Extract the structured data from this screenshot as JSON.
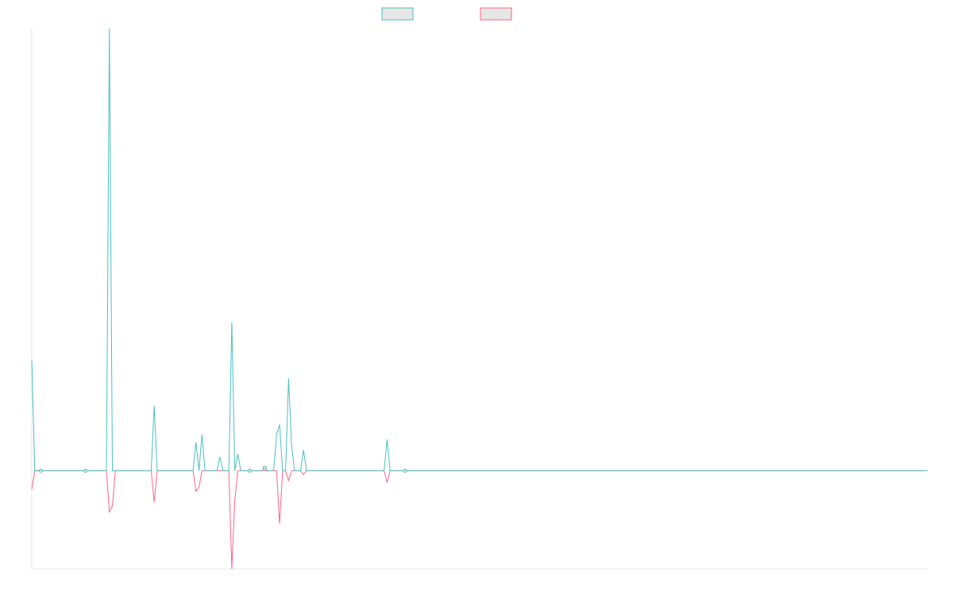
{
  "chart_data": {
    "type": "line",
    "title": "",
    "xlabel": "",
    "ylabel": "",
    "x_count": 301,
    "ylim": [
      -100,
      450
    ],
    "grid": false,
    "legend_position": "top-center",
    "series": [
      {
        "legend_label": "",
        "color": "#4bc0c0",
        "fill": "#e6e6e6",
        "baseline_markers": [
          3,
          18,
          73,
          78,
          125
        ],
        "values": {
          "0": 113,
          "1": 0,
          "25": 0,
          "26": 450,
          "27": 0,
          "40": 0,
          "41": 66,
          "42": 0,
          "54": 0,
          "55": 29,
          "56": 0,
          "57": 37,
          "58": 0,
          "62": 0,
          "63": 14,
          "64": 0,
          "66": 0,
          "67": 151,
          "68": 0,
          "69": 17,
          "70": 0,
          "77": 0,
          "78": 3,
          "79": 0,
          "81": 0,
          "82": 37,
          "83": 47,
          "84": 0,
          "85": 0,
          "86": 94,
          "87": 26,
          "88": 0,
          "90": 0,
          "91": 21,
          "92": 0,
          "118": 0,
          "119": 32,
          "120": 0
        }
      },
      {
        "legend_label": "",
        "color": "#ff6384",
        "fill": "#e6e6e6",
        "baseline_markers": [],
        "values": {
          "0": -19,
          "1": 0,
          "25": 0,
          "26": -42,
          "27": -36,
          "28": 0,
          "40": 0,
          "41": -32,
          "42": 0,
          "54": 0,
          "55": -21,
          "56": -17,
          "57": 0,
          "66": 0,
          "67": -100,
          "68": -30,
          "69": 0,
          "81": 0,
          "82": 0,
          "83": -54,
          "84": 0,
          "85": 0,
          "86": -10,
          "87": 0,
          "90": 0,
          "91": -4,
          "92": 0,
          "118": 0,
          "119": -12,
          "120": 0
        }
      }
    ]
  }
}
